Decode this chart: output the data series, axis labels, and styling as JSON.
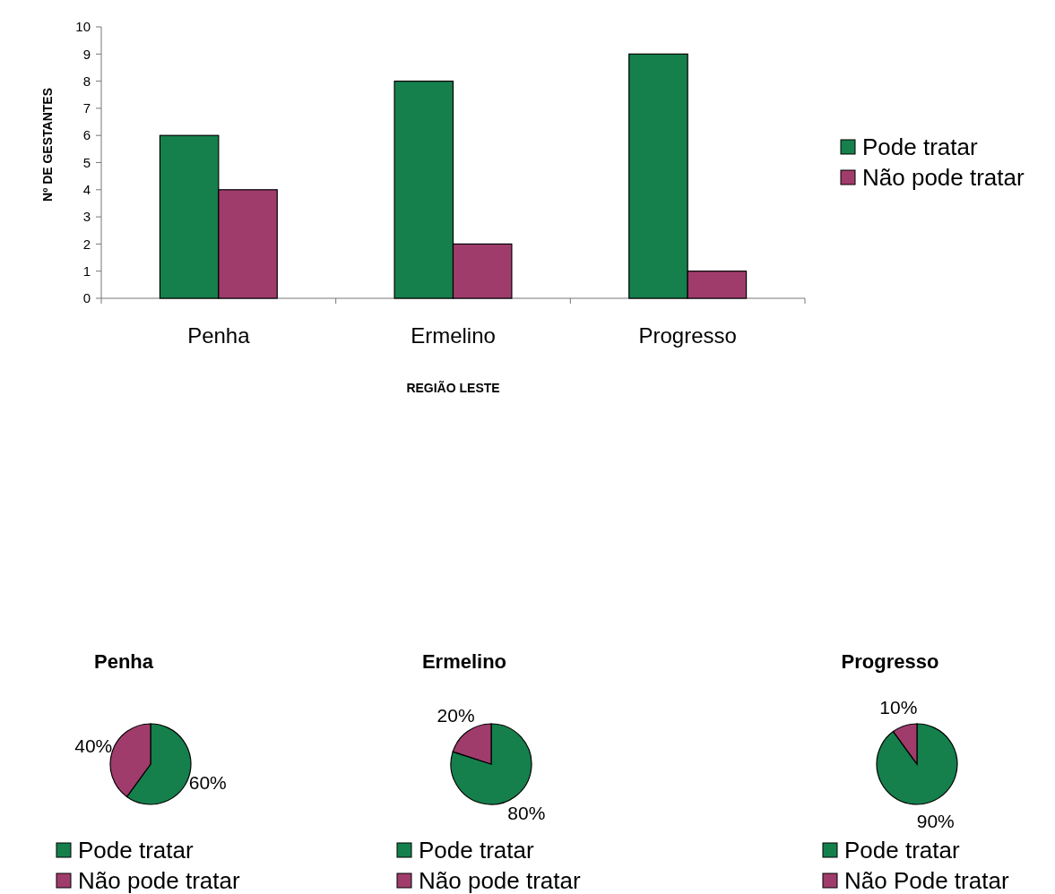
{
  "chart_data": [
    {
      "type": "bar",
      "xlabel": "REGIÃO LESTE",
      "ylabel": "Nº DE GESTANTES",
      "categories": [
        "Penha",
        "Ermelino",
        "Progresso"
      ],
      "series": [
        {
          "name": "Pode tratar",
          "color": "#15804c",
          "values": [
            6,
            8,
            9
          ]
        },
        {
          "name": "Não pode tratar",
          "color": "#a03c6c",
          "values": [
            4,
            2,
            1
          ]
        }
      ],
      "ylim": [
        0,
        10
      ],
      "yticks": [
        0,
        1,
        2,
        3,
        4,
        5,
        6,
        7,
        8,
        9,
        10
      ],
      "legend": "right"
    },
    {
      "type": "pie",
      "title": "Penha",
      "categories": [
        "Pode tratar",
        "Não pode tratar"
      ],
      "values": [
        60,
        40
      ],
      "colors": [
        "#15804c",
        "#a03c6c"
      ],
      "value_labels": [
        "60%",
        "40%"
      ],
      "legend": "bottom"
    },
    {
      "type": "pie",
      "title": "Ermelino",
      "categories": [
        "Pode tratar",
        "Não pode tratar"
      ],
      "values": [
        80,
        20
      ],
      "colors": [
        "#15804c",
        "#a03c6c"
      ],
      "value_labels": [
        "80%",
        "20%"
      ],
      "legend": "bottom"
    },
    {
      "type": "pie",
      "title": "Progresso",
      "categories": [
        "Pode tratar",
        "Não Pode tratar"
      ],
      "values": [
        90,
        10
      ],
      "colors": [
        "#15804c",
        "#a03c6c"
      ],
      "value_labels": [
        "90%",
        "10%"
      ],
      "legend": "bottom"
    }
  ]
}
